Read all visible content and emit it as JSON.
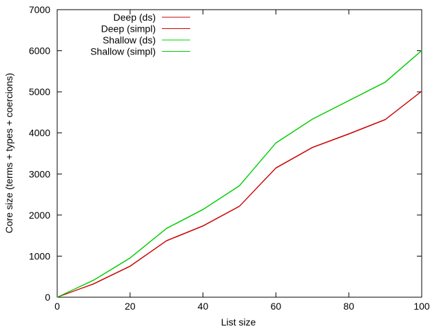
{
  "chart_data": {
    "type": "line",
    "title": "",
    "xlabel": "List size",
    "ylabel": "Core size (terms + types + coercions)",
    "xlim": [
      0,
      100
    ],
    "ylim": [
      0,
      7000
    ],
    "xticks": [
      0,
      20,
      40,
      60,
      80,
      100
    ],
    "yticks": [
      0,
      1000,
      2000,
      3000,
      4000,
      5000,
      6000,
      7000
    ],
    "legend_position": "top-left",
    "x": [
      0,
      10,
      20,
      30,
      40,
      50,
      60,
      70,
      80,
      90,
      100
    ],
    "series": [
      {
        "name": "Deep (ds)",
        "color": "#cc0000",
        "values": [
          0,
          330,
          760,
          1380,
          1740,
          2220,
          3150,
          3650,
          3980,
          4330,
          5020
        ]
      },
      {
        "name": "Deep (simpl)",
        "color": "#cc0000",
        "values": [
          0,
          320,
          750,
          1370,
          1730,
          2210,
          3140,
          3640,
          3970,
          4320,
          5010
        ]
      },
      {
        "name": "Shallow (ds)",
        "color": "#00cc00",
        "values": [
          0,
          420,
          960,
          1680,
          2140,
          2720,
          3760,
          4340,
          4790,
          5240,
          6010
        ]
      },
      {
        "name": "Shallow (simpl)",
        "color": "#00cc00",
        "values": [
          0,
          410,
          950,
          1670,
          2130,
          2710,
          3750,
          4330,
          4780,
          5230,
          6000
        ]
      }
    ]
  }
}
